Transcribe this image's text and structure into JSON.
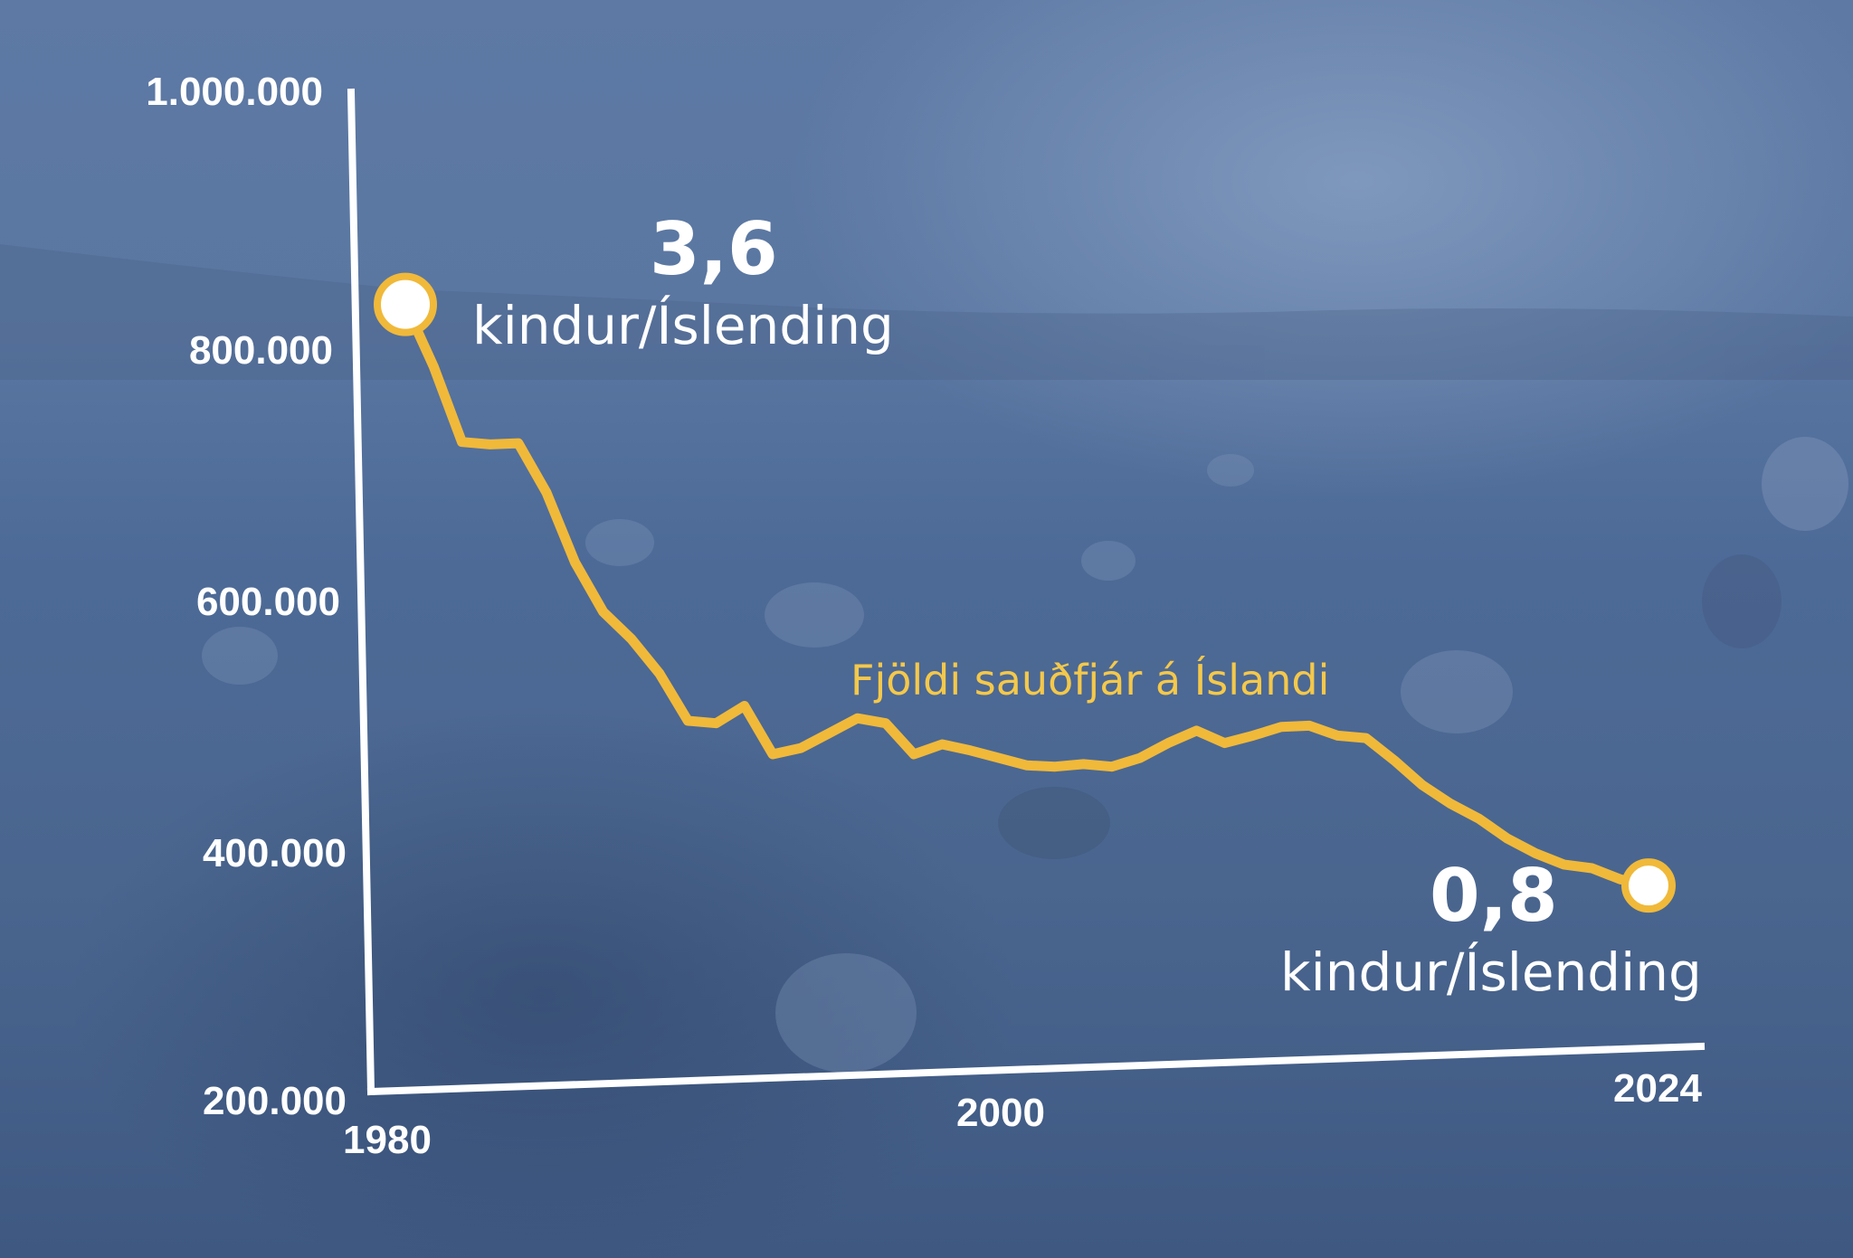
{
  "chart_data": {
    "type": "line",
    "y_ticks": [
      "1.000.000",
      "800.000",
      "600.000",
      "400.000",
      "200.000"
    ],
    "ylim": [
      200000,
      1000000
    ],
    "x_ticks": [
      "1980",
      "2000",
      "2024"
    ],
    "xlim": [
      1980,
      2024
    ],
    "series": [
      {
        "name": "Fjöldi sauðfjár á Íslandi",
        "color": "#f0b93a",
        "x": [
          1980,
          1981,
          1982,
          1983,
          1984,
          1985,
          1986,
          1987,
          1988,
          1989,
          1990,
          1991,
          1992,
          1993,
          1994,
          1995,
          1996,
          1997,
          1998,
          1999,
          2000,
          2001,
          2002,
          2003,
          2004,
          2005,
          2006,
          2007,
          2008,
          2009,
          2010,
          2011,
          2012,
          2013,
          2014,
          2015,
          2016,
          2017,
          2018,
          2019,
          2020,
          2021,
          2022,
          2023,
          2024
        ],
        "values": [
          828000,
          778000,
          717000,
          715000,
          716000,
          676000,
          620000,
          580000,
          558000,
          530000,
          492000,
          490000,
          504000,
          465000,
          470000,
          482000,
          494000,
          490000,
          465000,
          473000,
          468000,
          462000,
          456000,
          455000,
          457000,
          455000,
          462000,
          474000,
          484000,
          474000,
          480000,
          487000,
          488000,
          480000,
          478000,
          460000,
          440000,
          425000,
          413000,
          397000,
          385000,
          376000,
          373000,
          364000,
          359000
        ]
      }
    ],
    "annotations": {
      "start_value": "3,6",
      "start_unit": "kindur/Íslending",
      "end_value": "0,8",
      "end_unit": "kindur/Íslending"
    },
    "grid": false,
    "legend": "inline label above line"
  }
}
